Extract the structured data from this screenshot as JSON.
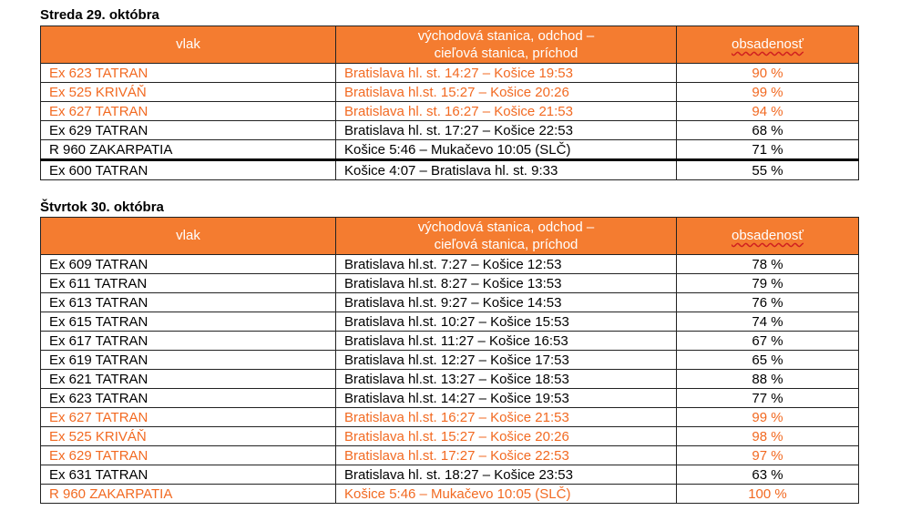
{
  "sections": [
    {
      "title": "Streda 29. októbra",
      "headers": {
        "train": "vlak",
        "route_line1": "východová stanica, odchod –",
        "route_line2": "cieľová stanica, príchod",
        "occupancy": "obsadenosť"
      },
      "rows": [
        {
          "train": "Ex 623 TATRAN",
          "route": "Bratislava hl. st. 14:27 – Košice 19:53",
          "occupancy": "90 %",
          "highlight": true
        },
        {
          "train": "Ex 525 KRIVÁŇ",
          "route": "Bratislava hl.st. 15:27 – Košice 20:26",
          "occupancy": "99 %",
          "highlight": true
        },
        {
          "train": "Ex 627 TATRAN",
          "route": "Bratislava hl. st. 16:27 – Košice 21:53",
          "occupancy": "94 %",
          "highlight": true
        },
        {
          "train": "Ex 629 TATRAN",
          "route": "Bratislava hl. st. 17:27 – Košice 22:53",
          "occupancy": "68 %",
          "highlight": false
        },
        {
          "train": "R 960 ZAKARPATIA",
          "route": "Košice 5:46 – Mukačevo 10:05 (SLČ)",
          "occupancy": "71 %",
          "highlight": false
        },
        {
          "train": "Ex 600 TATRAN",
          "route": "Košice 4:07 – Bratislava hl. st. 9:33",
          "occupancy": "55 %",
          "highlight": false
        }
      ]
    },
    {
      "title": "Štvrtok 30. októbra",
      "headers": {
        "train": "vlak",
        "route_line1": "východová stanica, odchod –",
        "route_line2": "cieľová stanica, príchod",
        "occupancy": "obsadenosť"
      },
      "rows": [
        {
          "train": "Ex 609 TATRAN",
          "route": "Bratislava hl.st. 7:27 – Košice 12:53",
          "occupancy": "78 %",
          "highlight": false
        },
        {
          "train": "Ex 611 TATRAN",
          "route": "Bratislava hl.st. 8:27 – Košice 13:53",
          "occupancy": "79 %",
          "highlight": false
        },
        {
          "train": "Ex 613 TATRAN",
          "route": "Bratislava hl.st. 9:27 – Košice 14:53",
          "occupancy": "76 %",
          "highlight": false
        },
        {
          "train": "Ex 615 TATRAN",
          "route": "Bratislava hl.st. 10:27 – Košice 15:53",
          "occupancy": "74 %",
          "highlight": false
        },
        {
          "train": "Ex 617 TATRAN",
          "route": "Bratislava hl.st. 11:27 – Košice 16:53",
          "occupancy": "67 %",
          "highlight": false
        },
        {
          "train": "Ex 619 TATRAN",
          "route": "Bratislava hl.st. 12:27 – Košice 17:53",
          "occupancy": "65 %",
          "highlight": false
        },
        {
          "train": "Ex 621 TATRAN",
          "route": "Bratislava hl.st. 13:27 – Košice 18:53",
          "occupancy": "88 %",
          "highlight": false
        },
        {
          "train": "Ex 623 TATRAN",
          "route": "Bratislava hl.st. 14:27 – Košice 19:53",
          "occupancy": "77 %",
          "highlight": false
        },
        {
          "train": "Ex 627 TATRAN",
          "route": "Bratislava hl.st. 16:27 – Košice 21:53",
          "occupancy": "99 %",
          "highlight": true
        },
        {
          "train": "Ex 525 KRIVÁŇ",
          "route": "Bratislava hl.st. 15:27 – Košice 20:26",
          "occupancy": "98 %",
          "highlight": true
        },
        {
          "train": "Ex 629 TATRAN",
          "route": "Bratislava hl.st. 17:27 – Košice 22:53",
          "occupancy": "97 %",
          "highlight": true
        },
        {
          "train": "Ex 631 TATRAN",
          "route": "Bratislava hl. st. 18:27 – Košice 23:53",
          "occupancy": "63 %",
          "highlight": false
        },
        {
          "train": "R 960 ZAKARPATIA",
          "route": "Košice 5:46 – Mukačevo 10:05 (SLČ)",
          "occupancy": "100 %",
          "highlight": true
        }
      ]
    }
  ],
  "colors": {
    "header_bg": "#f47c30",
    "highlight_text": "#f26a22"
  }
}
